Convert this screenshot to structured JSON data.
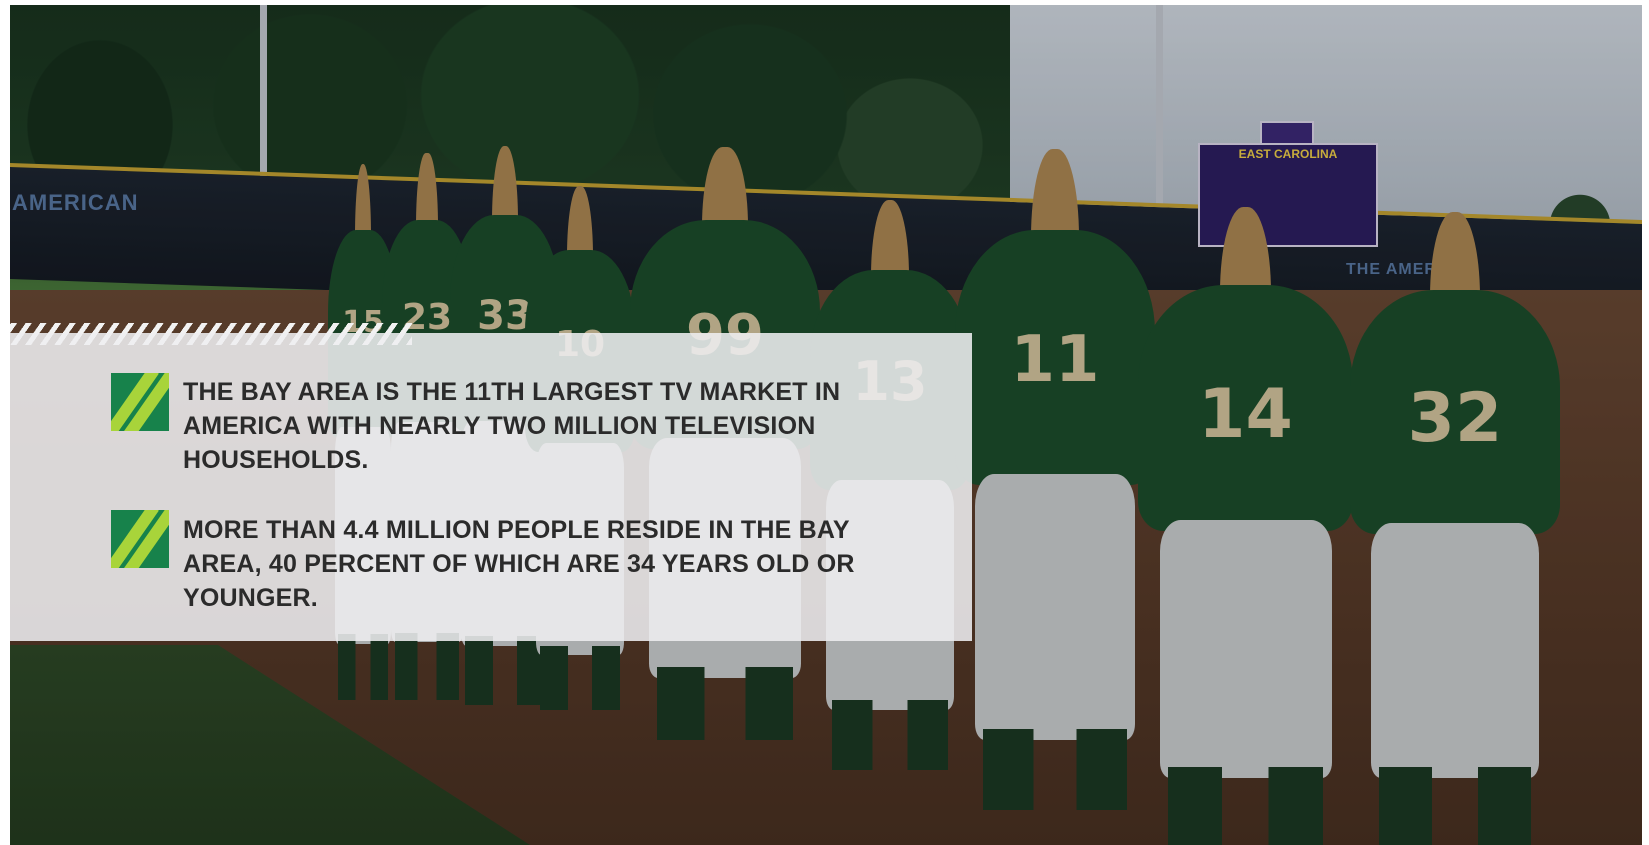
{
  "background": {
    "image": "softball-team-lined-up-photo",
    "scoreboard_title": "EAST CAROLINA",
    "wall_left_label": "AMERICAN",
    "wall_right_label": "THE AMERICAN",
    "jersey_numbers": [
      "15",
      "23",
      "33",
      "10",
      "99",
      "13",
      "11",
      "14",
      "32"
    ]
  },
  "stats": [
    {
      "icon": "double-slash-bullet-icon",
      "text": "THE BAY AREA IS THE 11TH LARGEST TV MARKET IN AMERICA WITH NEARLY TWO MILLION TELEVISION HOUSEHOLDS."
    },
    {
      "icon": "double-slash-bullet-icon",
      "text": "MORE THAN 4.4 MILLION PEOPLE RESIDE IN THE BAY AREA, 40 PERCENT OF WHICH ARE 34 YEARS OLD OR YOUNGER."
    }
  ],
  "colors": {
    "bullet_dark": "#17824b",
    "bullet_light": "#a8d43a",
    "panel": "#eeeef0",
    "text": "#2b2b2b",
    "jersey": "#1d4f2c"
  }
}
